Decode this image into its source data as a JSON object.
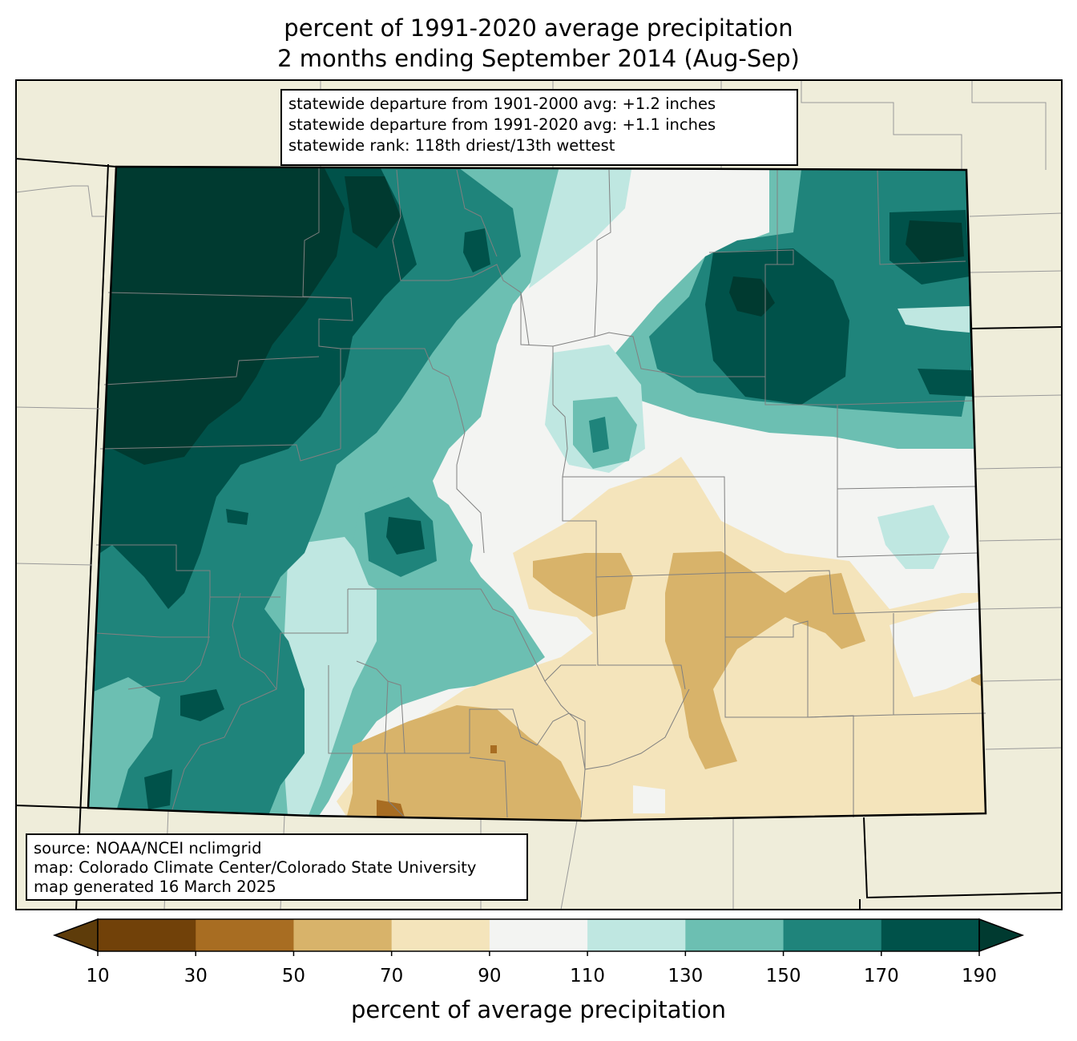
{
  "title": {
    "line1": "percent of 1991-2020 average precipitation",
    "line2": "2 months ending September 2014 (Aug-Sep)"
  },
  "statewide_box": {
    "line1": "statewide departure from 1901-2000 avg: +1.2 inches",
    "line2": "statewide departure from 1991-2020 avg: +1.1 inches",
    "line3": "statewide rank: 118th driest/13th wettest"
  },
  "source_box": {
    "line1": "source: NOAA/NCEI nclimgrid",
    "line2": "map: Colorado Climate Center/Colorado State University",
    "line3": "map generated 16 March 2025"
  },
  "colorbar": {
    "label": "percent of average precipitation",
    "ticks": [
      "10",
      "30",
      "50",
      "70",
      "90",
      "110",
      "130",
      "150",
      "170",
      "190"
    ],
    "colors": [
      "#5e3c0a",
      "#714109",
      "#a86d22",
      "#d8b36a",
      "#f4e4bb",
      "#f3f4f2",
      "#bfe7e1",
      "#6cbfb2",
      "#1f847b",
      "#00524a",
      "#003a30"
    ]
  },
  "map_colors": {
    "background": "#efedda",
    "state_border": "#000000",
    "county_border": "#8a8a8a"
  }
}
